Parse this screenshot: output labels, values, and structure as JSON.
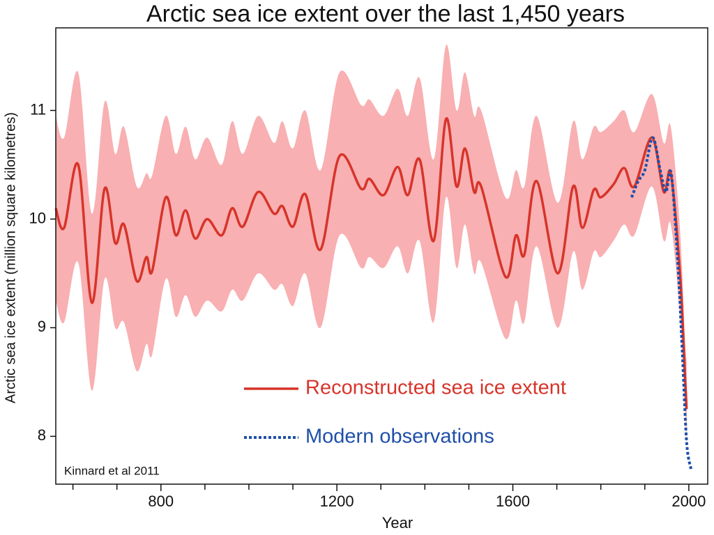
{
  "chart_data": {
    "type": "line",
    "title": "Arctic sea ice extent over the last 1,450 years",
    "x_label": "Year",
    "y_label": "Arctic sea ice extent (million square kilometres)",
    "annotation": "Kinnard et al 2011",
    "xlim": [
      561,
      2043
    ],
    "ylim": [
      7.56,
      11.76
    ],
    "xticks": [
      800,
      1200,
      1600,
      2000
    ],
    "xminor_ticks": [
      600,
      700,
      900,
      1000,
      1100,
      1300,
      1400,
      1500,
      1700,
      1800,
      1900
    ],
    "yticks": [
      8,
      9,
      10,
      11
    ],
    "series": [
      {
        "name": "Reconstructed sea ice extent",
        "color": "#d7342a",
        "band_color": "#f8b0b2",
        "x": [
          561,
          580,
          612,
          643,
          672,
          696,
          716,
          745,
          767,
          780,
          811,
          834,
          856,
          878,
          905,
          938,
          962,
          986,
          1021,
          1057,
          1076,
          1100,
          1128,
          1163,
          1206,
          1255,
          1274,
          1306,
          1338,
          1361,
          1388,
          1420,
          1448,
          1472,
          1491,
          1512,
          1528,
          1583,
          1607,
          1626,
          1654,
          1702,
          1737,
          1758,
          1784,
          1800,
          1829,
          1853,
          1876,
          1916,
          1943,
          1959,
          1980,
          1991,
          1995
        ],
        "values": [
          10.1,
          9.92,
          10.5,
          9.23,
          10.28,
          9.78,
          9.95,
          9.43,
          9.65,
          9.52,
          10.2,
          9.85,
          10.08,
          9.82,
          10.0,
          9.85,
          10.1,
          9.93,
          10.25,
          10.05,
          10.12,
          9.93,
          10.23,
          9.72,
          10.58,
          10.28,
          10.37,
          10.22,
          10.48,
          10.22,
          10.55,
          9.8,
          10.92,
          10.3,
          10.65,
          10.25,
          10.3,
          9.47,
          9.85,
          9.67,
          10.35,
          9.5,
          10.3,
          9.92,
          10.27,
          10.2,
          10.32,
          10.47,
          10.3,
          10.75,
          10.25,
          10.42,
          9.5,
          8.6,
          8.25
        ],
        "upper": [
          10.95,
          10.75,
          11.35,
          10.05,
          11.08,
          10.6,
          10.85,
          10.3,
          10.42,
          10.4,
          10.95,
          10.6,
          10.85,
          10.55,
          10.75,
          10.5,
          10.9,
          10.6,
          10.95,
          10.7,
          10.9,
          10.65,
          11.0,
          10.45,
          11.35,
          11.05,
          11.1,
          10.95,
          11.2,
          10.95,
          11.3,
          10.55,
          11.6,
          11.0,
          11.35,
          10.95,
          11.0,
          10.2,
          10.45,
          10.3,
          10.95,
          10.15,
          10.9,
          10.55,
          10.85,
          10.8,
          10.9,
          11.0,
          10.8,
          11.15,
          10.7,
          10.85,
          9.9,
          8.9,
          8.7
        ],
        "lower": [
          9.25,
          9.05,
          9.6,
          8.42,
          9.45,
          9.0,
          9.05,
          8.6,
          8.85,
          8.75,
          9.45,
          9.1,
          9.3,
          9.1,
          9.25,
          9.15,
          9.35,
          9.25,
          9.5,
          9.35,
          9.4,
          9.2,
          9.5,
          9.0,
          9.85,
          9.55,
          9.65,
          9.55,
          9.75,
          9.5,
          9.8,
          9.05,
          10.2,
          9.55,
          9.95,
          9.5,
          9.6,
          8.9,
          9.25,
          9.05,
          9.75,
          9.0,
          9.7,
          9.35,
          9.7,
          9.65,
          9.8,
          9.95,
          9.85,
          10.3,
          9.8,
          9.95,
          9.1,
          8.25,
          7.9
        ]
      },
      {
        "name": "Modern observations",
        "color": "#1f4fa8",
        "dashed": true,
        "x": [
          1870,
          1885,
          1900,
          1918,
          1935,
          1948,
          1960,
          1975,
          1985,
          1995,
          2005
        ],
        "values": [
          10.2,
          10.35,
          10.45,
          10.75,
          10.45,
          10.25,
          10.42,
          9.6,
          8.8,
          7.95,
          7.7
        ]
      }
    ]
  }
}
